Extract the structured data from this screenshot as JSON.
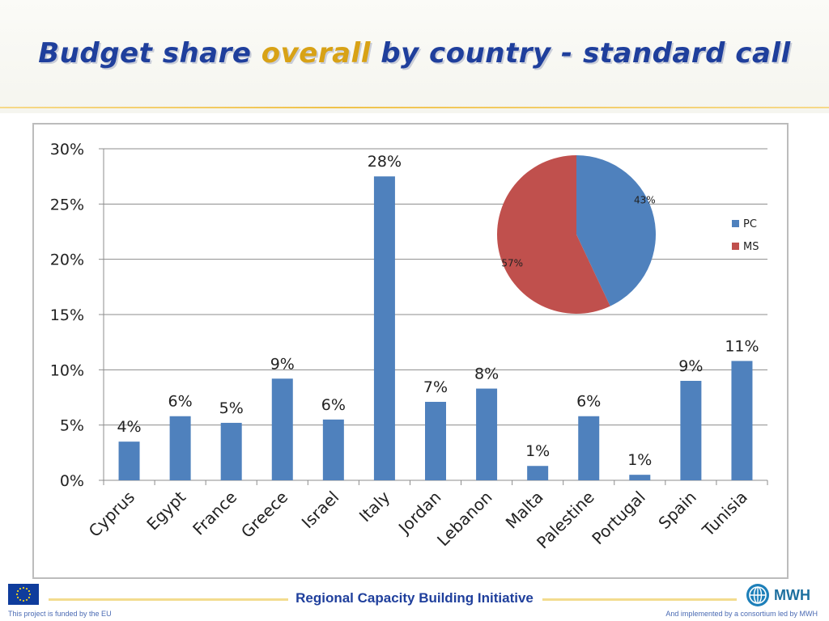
{
  "title": {
    "part1": "Budget share ",
    "accent": "overall",
    "part2": " by country - standard call"
  },
  "chart_data": [
    {
      "type": "bar",
      "categories": [
        "Cyprus",
        "Egypt",
        "France",
        "Greece",
        "Israel",
        "Italy",
        "Jordan",
        "Lebanon",
        "Malta",
        "Palestine",
        "Portugal",
        "Spain",
        "Tunisia"
      ],
      "values": [
        3.5,
        5.8,
        5.2,
        9.2,
        5.5,
        27.5,
        7.1,
        8.3,
        1.3,
        5.8,
        0.5,
        9.0,
        10.8
      ],
      "data_labels": [
        "4%",
        "6%",
        "5%",
        "9%",
        "6%",
        "28%",
        "7%",
        "8%",
        "1%",
        "6%",
        "1%",
        "9%",
        "11%"
      ],
      "ylim": [
        0,
        30
      ],
      "y_ticks": [
        0,
        5,
        10,
        15,
        20,
        25,
        30
      ],
      "y_tick_labels": [
        "0%",
        "5%",
        "10%",
        "15%",
        "20%",
        "25%",
        "30%"
      ],
      "grid": true,
      "bar_color": "#4f81bd",
      "xlabel": "",
      "ylabel": ""
    },
    {
      "type": "pie",
      "slices": [
        {
          "label": "PC",
          "value": 43,
          "data_label": "43%",
          "color": "#4f81bd"
        },
        {
          "label": "MS",
          "value": 57,
          "data_label": "57%",
          "color": "#c0504d"
        }
      ],
      "legend_position": "right"
    }
  ],
  "footer": {
    "center": "Regional Capacity Building Initiative",
    "left": "This project is funded by the EU",
    "right": "And implemented by a consortium led by MWH",
    "logo_text": "MWH"
  }
}
